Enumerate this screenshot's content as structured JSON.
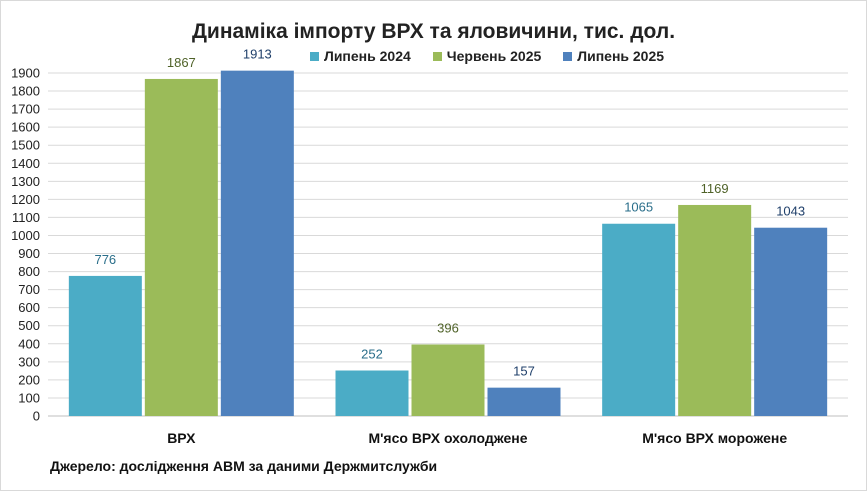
{
  "chart_data": {
    "type": "bar",
    "title": "Динаміка імпорту ВРХ та яловичини, тис. дол.",
    "categories": [
      "ВРХ",
      "М'ясо ВРХ охолоджене",
      "М'ясо ВРХ морожене"
    ],
    "series": [
      {
        "name": "Липень 2024",
        "values": [
          776,
          252,
          1065
        ],
        "color": "#4bacc6",
        "label_color": "#2a6e8a"
      },
      {
        "name": "Червень 2025",
        "values": [
          1867,
          396,
          1169
        ],
        "color": "#9bbb59",
        "label_color": "#4f6228"
      },
      {
        "name": "Липень 2025",
        "values": [
          1913,
          157,
          1043
        ],
        "color": "#4f81bd",
        "label_color": "#1f3f6a"
      }
    ],
    "ylim": [
      0,
      1900
    ],
    "yticks": [
      0,
      100,
      200,
      300,
      400,
      500,
      600,
      700,
      800,
      900,
      1000,
      1100,
      1200,
      1300,
      1400,
      1500,
      1600,
      1700,
      1800,
      1900
    ],
    "grid": true,
    "legend_position": "top"
  },
  "source_note": "Джерело: дослідження АВМ за даними Держмитслужби"
}
